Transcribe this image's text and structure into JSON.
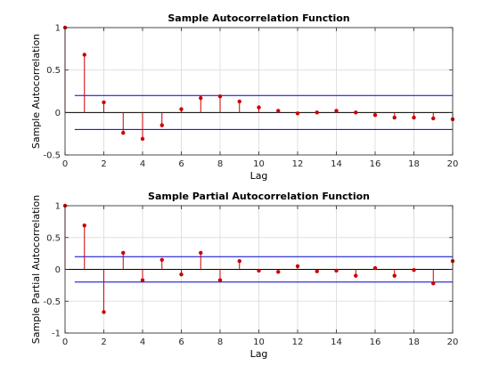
{
  "chart_data": [
    {
      "type": "stem",
      "title": "Sample Autocorrelation Function",
      "xlabel": "Lag",
      "ylabel": "Sample Autocorrelation",
      "xlim": [
        0,
        20
      ],
      "ylim": [
        -0.5,
        1
      ],
      "xticks": [
        0,
        2,
        4,
        6,
        8,
        10,
        12,
        14,
        16,
        18,
        20
      ],
      "yticks": [
        -0.5,
        0,
        0.5,
        1
      ],
      "yticklabels": [
        "-0.5",
        "0",
        "0.5",
        "1"
      ],
      "grid": true,
      "confidence_bounds": [
        0.2,
        -0.2
      ],
      "x": [
        0,
        1,
        2,
        3,
        4,
        5,
        6,
        7,
        8,
        9,
        10,
        11,
        12,
        13,
        14,
        15,
        16,
        17,
        18,
        19,
        20
      ],
      "values": [
        1.0,
        0.68,
        0.12,
        -0.24,
        -0.31,
        -0.15,
        0.04,
        0.17,
        0.19,
        0.13,
        0.06,
        0.02,
        -0.01,
        0.0,
        0.02,
        0.0,
        -0.03,
        -0.06,
        -0.06,
        -0.07,
        -0.08
      ],
      "colors": {
        "stem": "#cc0000",
        "bounds": "#0000cc",
        "zero": "#000000",
        "grid": "#e0e0e0"
      }
    },
    {
      "type": "stem",
      "title": "Sample Partial Autocorrelation Function",
      "xlabel": "Lag",
      "ylabel": "Sample Partial Autocorrelation",
      "xlim": [
        0,
        20
      ],
      "ylim": [
        -1,
        1
      ],
      "xticks": [
        0,
        2,
        4,
        6,
        8,
        10,
        12,
        14,
        16,
        18,
        20
      ],
      "yticks": [
        -1,
        -0.5,
        0,
        0.5,
        1
      ],
      "yticklabels": [
        "-1",
        "-0.5",
        "0",
        "0.5",
        "1"
      ],
      "grid": true,
      "confidence_bounds": [
        0.2,
        -0.2
      ],
      "x": [
        0,
        1,
        2,
        3,
        4,
        5,
        6,
        7,
        8,
        9,
        10,
        11,
        12,
        13,
        14,
        15,
        16,
        17,
        18,
        19,
        20
      ],
      "values": [
        1.0,
        0.69,
        -0.67,
        0.26,
        -0.17,
        0.15,
        -0.08,
        0.26,
        -0.17,
        0.13,
        -0.02,
        -0.04,
        0.05,
        -0.03,
        -0.02,
        -0.1,
        0.02,
        -0.1,
        -0.01,
        -0.22,
        0.13
      ],
      "colors": {
        "stem": "#cc0000",
        "bounds": "#0000cc",
        "zero": "#000000",
        "grid": "#e0e0e0"
      }
    }
  ]
}
